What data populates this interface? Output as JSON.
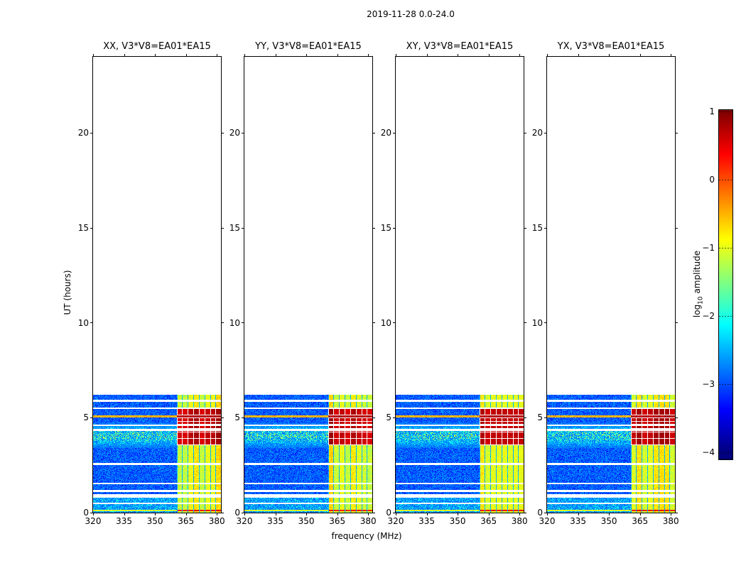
{
  "chart_data": {
    "type": "heatmap",
    "title": "2019-11-28 0.0-24.0",
    "xlabel": "frequency (MHz)",
    "ylabel": "UT (hours)",
    "x_range": [
      320,
      382
    ],
    "y_range": [
      0,
      24
    ],
    "x_ticks": [
      320,
      335,
      350,
      365,
      380
    ],
    "y_ticks": [
      0,
      5,
      10,
      15,
      20
    ],
    "panels": [
      {
        "pol": "XX",
        "title": "XX, V3*V8=EA01*EA15"
      },
      {
        "pol": "YY",
        "title": "YY, V3*V8=EA01*EA15"
      },
      {
        "pol": "XY",
        "title": "XY, V3*V8=EA01*EA15"
      },
      {
        "pol": "YX",
        "title": "YX, V3*V8=EA01*EA15"
      }
    ],
    "colorbar": {
      "label": "log10 amplitude",
      "ticks": [
        1,
        0,
        -1,
        -2,
        -3,
        -4
      ],
      "vmin": -4,
      "vmax": 1,
      "colormap": "jet"
    },
    "features": {
      "data_top_hour": 6.2,
      "rfi_band_mhz": [
        360.5,
        382
      ],
      "stripe_period_mhz": 2.7,
      "gap_hours": [
        [
          0.44,
          0.52
        ],
        [
          0.8,
          0.97
        ],
        [
          1.1,
          1.2
        ],
        [
          1.48,
          1.56
        ],
        [
          2.5,
          2.6
        ],
        [
          4.3,
          4.4
        ],
        [
          4.55,
          4.63
        ],
        [
          5.45,
          5.52
        ],
        [
          5.83,
          5.93
        ]
      ],
      "block_hours": [
        [
          3.55,
          4.3
        ],
        [
          4.4,
          4.55
        ],
        [
          4.63,
          5.0
        ],
        [
          5.12,
          5.45
        ]
      ],
      "block_row_period_hours": 0.17,
      "bright_line_hours": [
        5.0,
        5.12
      ],
      "bottom_line_hours": [
        0.08,
        0.16
      ],
      "bottom_speckle_hours": [
        0.0,
        0.78
      ],
      "haze": {
        "hours": [
          3.4,
          4.75
        ],
        "mhz": [
          321,
          360.5
        ],
        "peak_hour": 4.05
      },
      "levels": {
        "background": [
          -3.3,
          -2.55
        ],
        "band_column": [
          -1.8,
          -0.4
        ],
        "band_block": [
          0.2,
          1.0
        ],
        "band_gap_line": [
          -2.7,
          -2.3
        ],
        "line_outside": [
          -0.7,
          -0.3
        ],
        "line_band": [
          0.5,
          1.0
        ],
        "bottom_line": [
          -1.3,
          -0.8
        ]
      }
    }
  }
}
